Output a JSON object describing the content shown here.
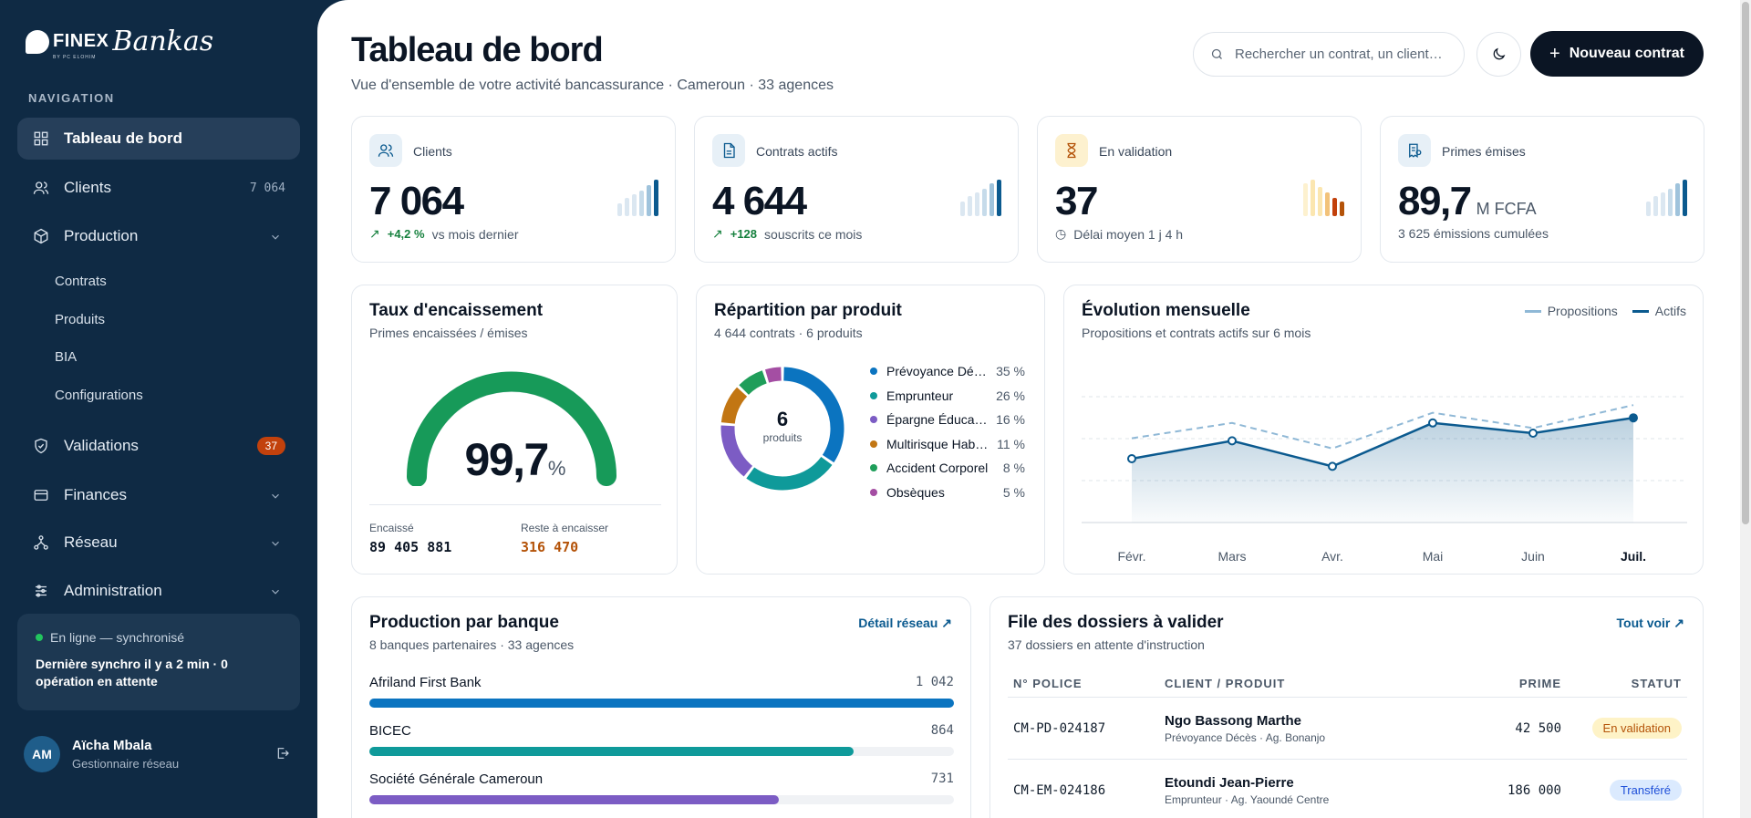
{
  "brand": {
    "name_a": "FINEX",
    "name_b": "Bankas",
    "byline": "BY PC ELOHIM"
  },
  "nav": {
    "section_label": "NAVIGATION",
    "items": [
      {
        "label": "Tableau de bord",
        "icon": "dashboard-icon",
        "active": true
      },
      {
        "label": "Clients",
        "icon": "users-icon",
        "count": "7 064"
      },
      {
        "label": "Production",
        "icon": "box-icon",
        "expanded": true
      },
      {
        "label": "Validations",
        "icon": "shield-check-icon",
        "badge": "37"
      },
      {
        "label": "Finances",
        "icon": "wallet-icon"
      },
      {
        "label": "Réseau",
        "icon": "network-icon"
      },
      {
        "label": "Administration",
        "icon": "sliders-icon"
      }
    ],
    "production_sub": [
      "Contrats",
      "Produits",
      "BIA",
      "Configurations"
    ]
  },
  "sync": {
    "status": "En ligne — synchronisé",
    "message": "Dernière synchro il y a 2 min · 0 opération en attente"
  },
  "user": {
    "initials": "AM",
    "name": "Aïcha Mbala",
    "role": "Gestionnaire réseau"
  },
  "header": {
    "title": "Tableau de bord",
    "subtitle": "Vue d'ensemble de votre activité bancassurance · Cameroun · 33 agences",
    "search_placeholder": "Rechercher un contrat, un client…",
    "new_button": "Nouveau contrat"
  },
  "kpis": [
    {
      "label": "Clients",
      "value": "7 064",
      "unit": "",
      "delta": "+4,2 %",
      "foot": "vs mois dernier",
      "icon": "users-icon",
      "accent": "#0b5a8f"
    },
    {
      "label": "Contrats actifs",
      "value": "4 644",
      "unit": "",
      "delta": "+128",
      "foot": "souscrits ce mois",
      "icon": "document-icon",
      "accent": "#0b5a8f"
    },
    {
      "label": "En validation",
      "value": "37",
      "unit": "",
      "delta": "",
      "foot": "Délai moyen 1 j 4 h",
      "icon": "hourglass-icon",
      "accent": "#b45309"
    },
    {
      "label": "Primes émises",
      "value": "89,7",
      "unit": "M FCFA",
      "delta": "",
      "foot": "3 625  émissions cumulées",
      "icon": "receipt-icon",
      "accent": "#0b5a8f"
    }
  ],
  "encaissement": {
    "title": "Taux d'encaissement",
    "subtitle": "Primes encaissées / émises",
    "rate": "99,7",
    "rate_value": 99.7,
    "pct": "%",
    "encaisse_label": "Encaissé",
    "encaisse_value": "89 405 881",
    "reste_label": "Reste à encaisser",
    "reste_value": "316 470"
  },
  "repartition": {
    "title": "Répartition par produit",
    "subtitle": "4 644 contrats · 6 produits",
    "center_value": "6",
    "center_label": "produits",
    "items": [
      {
        "name": "Prévoyance Décès",
        "pct": "35 %",
        "value": 35,
        "color": "#0b74c0"
      },
      {
        "name": "Emprunteur",
        "pct": "26 %",
        "value": 26,
        "color": "#0f9a9a"
      },
      {
        "name": "Épargne Éducation",
        "pct": "16 %",
        "value": 16,
        "color": "#7c5cc4"
      },
      {
        "name": "Multirisque Habitation",
        "pct": "11 %",
        "value": 11,
        "color": "#c27613"
      },
      {
        "name": "Accident Corporel",
        "pct": "8 %",
        "value": 8,
        "color": "#1f9e5a"
      },
      {
        "name": "Obsèques",
        "pct": "5 %",
        "value": 5,
        "color": "#a44ea3"
      }
    ]
  },
  "evolution": {
    "title": "Évolution mensuelle",
    "subtitle": "Propositions et contrats actifs sur 6 mois",
    "legend": [
      "Propositions",
      "Actifs"
    ]
  },
  "chart_data": {
    "type": "line",
    "categories": [
      "Févr.",
      "Mars",
      "Avr.",
      "Mai",
      "Juin",
      "Juil."
    ],
    "series": [
      {
        "name": "Propositions",
        "values": [
          73,
          79,
          69,
          83,
          77,
          86
        ],
        "color": "#8fb8d6",
        "dashed": true
      },
      {
        "name": "Actifs",
        "values": [
          65,
          72,
          62,
          79,
          75,
          81
        ],
        "color": "#0b5a8f",
        "dashed": false
      }
    ],
    "ylim": [
      0,
      100
    ],
    "grid": true,
    "legend": "top-right"
  },
  "banks": {
    "title": "Production par banque",
    "subtitle": "8 banques partenaires · 33 agences",
    "link": "Détail réseau",
    "rows": [
      {
        "name": "Afriland First Bank",
        "value": "1 042",
        "share": 1.0,
        "color": "#0b74c0"
      },
      {
        "name": "BICEC",
        "value": "864",
        "share": 0.829,
        "color": "#0f9a9a"
      },
      {
        "name": "Société Générale Cameroun",
        "value": "731",
        "share": 0.701,
        "color": "#7c5cc4"
      }
    ]
  },
  "dossiers": {
    "title": "File des dossiers à valider",
    "subtitle": "37 dossiers en attente d'instruction",
    "link": "Tout voir",
    "headers": [
      "N° POLICE",
      "CLIENT / PRODUIT",
      "PRIME",
      "STATUT"
    ],
    "rows": [
      {
        "police": "CM-PD-024187",
        "client": "Ngo Bassong Marthe",
        "produit": "Prévoyance Décès · Ag. Bonanjo",
        "prime": "42 500",
        "statut": "En validation",
        "statut_color": "#b45309",
        "statut_bg": "#fef3c7"
      },
      {
        "police": "CM-EM-024186",
        "client": "Etoundi Jean-Pierre",
        "produit": "Emprunteur · Ag. Yaoundé Centre",
        "prime": "186 000",
        "statut": "Transféré",
        "statut_color": "#1d4ed8",
        "statut_bg": "#dbeafe"
      }
    ]
  }
}
